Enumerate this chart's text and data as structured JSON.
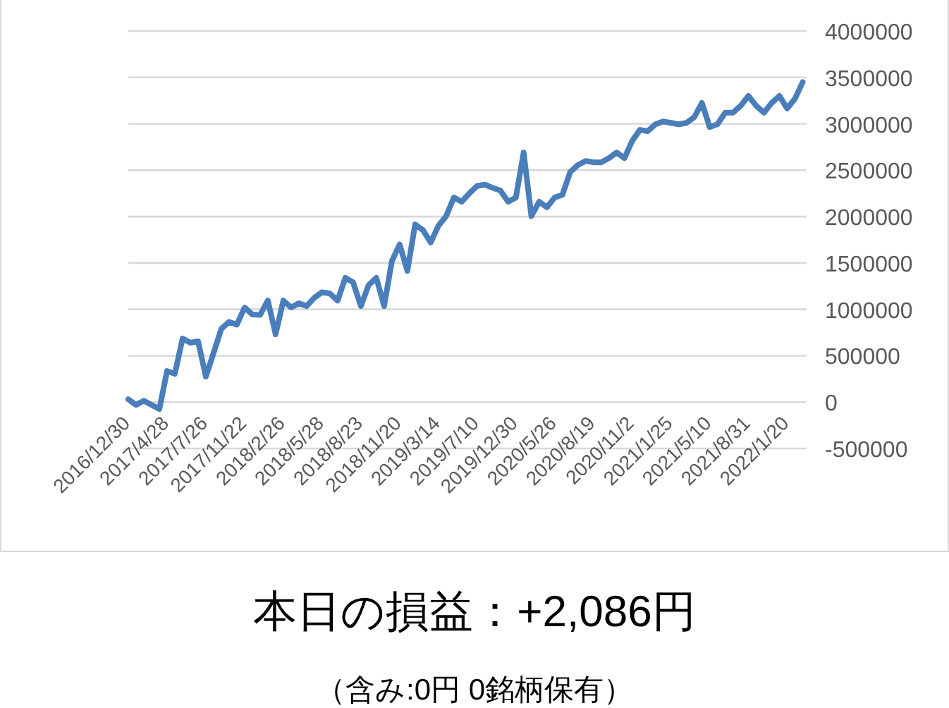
{
  "chart_data": {
    "type": "line",
    "categories": [
      "2016/12/30",
      null,
      null,
      null,
      null,
      "2017/4/28",
      null,
      null,
      null,
      null,
      "2017/7/26",
      null,
      null,
      null,
      null,
      "2017/11/22",
      null,
      null,
      null,
      null,
      "2018/2/26",
      null,
      null,
      null,
      null,
      "2018/5/28",
      null,
      null,
      null,
      null,
      "2018/8/23",
      null,
      null,
      null,
      null,
      "2018/11/20",
      null,
      null,
      null,
      null,
      "2019/3/14",
      null,
      null,
      null,
      null,
      "2019/7/10",
      null,
      null,
      null,
      null,
      "2019/12/30",
      null,
      null,
      null,
      null,
      "2020/5/26",
      null,
      null,
      null,
      null,
      "2020/8/19",
      null,
      null,
      null,
      null,
      "2020/11/2",
      null,
      null,
      null,
      null,
      "2021/1/25",
      null,
      null,
      null,
      null,
      "2021/5/10",
      null,
      null,
      null,
      null,
      "2021/8/31",
      null,
      null,
      null,
      null,
      "2022/1/20",
      null,
      null
    ],
    "series": [
      {
        "color": "#4a7ebb",
        "values": [
          30000,
          -30000,
          15000,
          -30000,
          -75000,
          335000,
          305000,
          685000,
          640000,
          655000,
          275000,
          530000,
          790000,
          865000,
          835000,
          1020000,
          945000,
          940000,
          1095000,
          730000,
          1095000,
          1020000,
          1065000,
          1035000,
          1125000,
          1185000,
          1170000,
          1095000,
          1340000,
          1290000,
          1035000,
          1260000,
          1340000,
          1035000,
          1520000,
          1700000,
          1415000,
          1915000,
          1855000,
          1720000,
          1900000,
          2005000,
          2205000,
          2160000,
          2250000,
          2330000,
          2345000,
          2310000,
          2280000,
          2160000,
          2205000,
          2690000,
          2005000,
          2160000,
          2100000,
          2205000,
          2235000,
          2480000,
          2555000,
          2600000,
          2585000,
          2585000,
          2630000,
          2690000,
          2630000,
          2815000,
          2935000,
          2920000,
          2995000,
          3025000,
          3010000,
          2995000,
          3010000,
          3070000,
          3225000,
          2965000,
          2995000,
          3120000,
          3120000,
          3195000,
          3300000,
          3195000,
          3120000,
          3225000,
          3300000,
          3165000,
          3270000,
          3450000
        ]
      }
    ],
    "ylim": [
      -500000,
      4000000
    ],
    "yticks": [
      -500000,
      0,
      500000,
      1000000,
      1500000,
      2000000,
      2500000,
      3000000,
      3500000,
      4000000
    ],
    "grid": "y",
    "annotations": [
      "本日の損益：+2,086円",
      "（含み:0円  0銘柄保有）"
    ]
  }
}
